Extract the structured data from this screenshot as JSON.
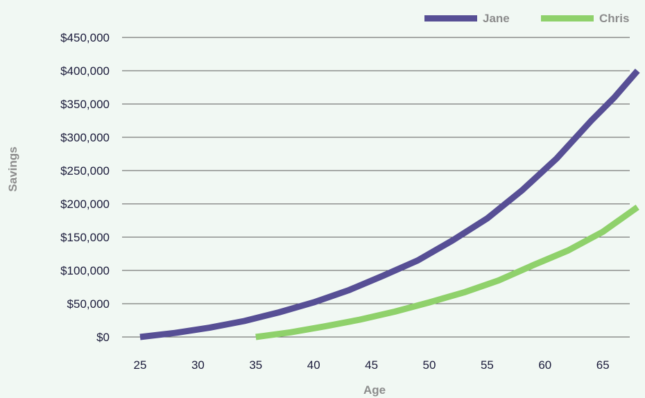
{
  "chart_data": {
    "type": "line",
    "title": "",
    "xlabel": "Age",
    "ylabel": "Savings",
    "xlim": [
      25,
      68
    ],
    "ylim": [
      0,
      450000
    ],
    "x_ticks": [
      25,
      30,
      35,
      40,
      45,
      50,
      55,
      60,
      65
    ],
    "y_ticks": [
      0,
      50000,
      100000,
      150000,
      200000,
      250000,
      300000,
      350000,
      400000,
      450000
    ],
    "y_tick_labels": [
      "$0",
      "$50,000",
      "$100,000",
      "$150,000",
      "$200,000",
      "$250,000",
      "$300,000",
      "$350,000",
      "$400,000",
      "$450,000"
    ],
    "grid": "horizontal",
    "legend_position": "top-right",
    "series": [
      {
        "name": "Jane",
        "color": "#574f95",
        "x": [
          25,
          28,
          31,
          34,
          37,
          40,
          43,
          46,
          49,
          52,
          55,
          58,
          61,
          64,
          66,
          68
        ],
        "y": [
          0,
          6000,
          14000,
          24000,
          37000,
          52000,
          70000,
          92000,
          115000,
          145000,
          178000,
          220000,
          268000,
          325000,
          360000,
          400000
        ]
      },
      {
        "name": "Chris",
        "color": "#8fd16b",
        "x": [
          35,
          38,
          41,
          44,
          47,
          50,
          53,
          56,
          59,
          62,
          65,
          68
        ],
        "y": [
          0,
          7000,
          16000,
          26000,
          38000,
          52000,
          67000,
          85000,
          108000,
          130000,
          158000,
          195000
        ]
      }
    ]
  }
}
